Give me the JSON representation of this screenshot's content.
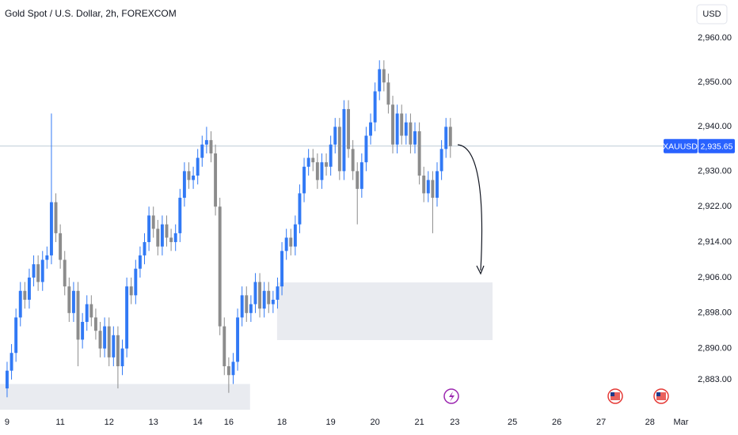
{
  "chart_data": {
    "type": "candlestick",
    "title": "Gold Spot / U.S. Dollar, 2h, FOREXCOM",
    "currency": "USD",
    "up_color": "#3179f5",
    "down_color": "#8c8c8c",
    "open": [
      2881,
      2885,
      2889,
      2897,
      2903,
      2901,
      2906,
      2909,
      2905,
      2910,
      2911,
      2923,
      2916,
      2910,
      2904,
      2898,
      2903,
      2892,
      2896,
      2900,
      2897,
      2894,
      2890,
      2895,
      2888,
      2893,
      2886,
      2890,
      2904,
      2902,
      2908,
      2911,
      2914,
      2920,
      2917,
      2913,
      2918,
      2915,
      2914,
      2916,
      2924,
      2930,
      2928,
      2929,
      2933,
      2936,
      2937,
      2934,
      2922,
      2895,
      2886,
      2884,
      2887,
      2897,
      2902,
      2898,
      2900,
      2905,
      2899,
      2903,
      2900,
      2901,
      2904,
      2912,
      2915,
      2913,
      2918,
      2925,
      2931,
      2933,
      2932,
      2928,
      2932,
      2931,
      2936,
      2940,
      2930,
      2944,
      2935,
      2930,
      2926,
      2932,
      2938,
      2941,
      2948,
      2953,
      2950,
      2945,
      2936,
      2943,
      2938,
      2941,
      2936,
      2939,
      2929,
      2925,
      2928,
      2924,
      2930,
      2935,
      2940
    ],
    "high": [
      2887,
      2891,
      2899,
      2905,
      2905,
      2908,
      2911,
      2911,
      2912,
      2913,
      2943,
      2925,
      2918,
      2912,
      2906,
      2905,
      2905,
      2898,
      2902,
      2902,
      2899,
      2896,
      2897,
      2897,
      2895,
      2895,
      2892,
      2906,
      2906,
      2910,
      2913,
      2916,
      2922,
      2922,
      2919,
      2920,
      2920,
      2917,
      2918,
      2926,
      2932,
      2932,
      2931,
      2935,
      2938,
      2940,
      2939,
      2936,
      2924,
      2897,
      2888,
      2889,
      2899,
      2904,
      2904,
      2902,
      2907,
      2907,
      2905,
      2905,
      2903,
      2906,
      2914,
      2917,
      2917,
      2920,
      2927,
      2933,
      2935,
      2935,
      2934,
      2934,
      2934,
      2938,
      2942,
      2942,
      2946,
      2946,
      2937,
      2932,
      2934,
      2940,
      2943,
      2950,
      2955,
      2955,
      2952,
      2947,
      2945,
      2945,
      2943,
      2943,
      2941,
      2941,
      2931,
      2930,
      2930,
      2932,
      2937,
      2942,
      2942
    ],
    "low": [
      2879,
      2883,
      2887,
      2895,
      2899,
      2899,
      2904,
      2903,
      2903,
      2908,
      2909,
      2914,
      2908,
      2902,
      2896,
      2896,
      2886,
      2890,
      2894,
      2895,
      2892,
      2888,
      2888,
      2886,
      2886,
      2881,
      2884,
      2888,
      2900,
      2900,
      2906,
      2909,
      2912,
      2915,
      2911,
      2911,
      2913,
      2912,
      2912,
      2914,
      2922,
      2926,
      2926,
      2927,
      2931,
      2934,
      2932,
      2920,
      2893,
      2884,
      2880,
      2882,
      2885,
      2895,
      2896,
      2896,
      2898,
      2897,
      2897,
      2898,
      2898,
      2899,
      2902,
      2910,
      2911,
      2911,
      2916,
      2923,
      2929,
      2930,
      2926,
      2926,
      2929,
      2929,
      2934,
      2928,
      2928,
      2933,
      2928,
      2918,
      2924,
      2930,
      2936,
      2939,
      2946,
      2948,
      2943,
      2934,
      2934,
      2936,
      2936,
      2934,
      2934,
      2927,
      2923,
      2923,
      2916,
      2922,
      2928,
      2933,
      2933
    ],
    "close": [
      2885,
      2889,
      2897,
      2903,
      2901,
      2906,
      2909,
      2905,
      2910,
      2911,
      2923,
      2916,
      2910,
      2904,
      2898,
      2903,
      2892,
      2896,
      2900,
      2897,
      2894,
      2890,
      2895,
      2888,
      2893,
      2886,
      2890,
      2904,
      2902,
      2908,
      2911,
      2914,
      2920,
      2917,
      2913,
      2918,
      2915,
      2914,
      2916,
      2924,
      2930,
      2928,
      2929,
      2933,
      2936,
      2937,
      2934,
      2922,
      2895,
      2886,
      2884,
      2887,
      2897,
      2902,
      2898,
      2900,
      2905,
      2899,
      2903,
      2900,
      2901,
      2904,
      2912,
      2915,
      2913,
      2918,
      2925,
      2931,
      2933,
      2932,
      2928,
      2932,
      2931,
      2936,
      2940,
      2930,
      2944,
      2935,
      2930,
      2926,
      2932,
      2938,
      2941,
      2948,
      2953,
      2950,
      2945,
      2936,
      2943,
      2938,
      2941,
      2936,
      2939,
      2929,
      2925,
      2928,
      2924,
      2930,
      2935,
      2940,
      2935.65
    ],
    "last_price": {
      "symbol": "XAUUSD",
      "value": 2935.65,
      "label": "2,935.65"
    },
    "zones": [
      {
        "x": [
          -1.6,
          54.8
        ],
        "y": [
          2876.2,
          2882
        ]
      },
      {
        "x": [
          60.9,
          109.5
        ],
        "y": [
          2891.9,
          2904.9
        ]
      }
    ],
    "xlim": [
      -1.6,
      153.8
    ],
    "ylim": [
      2876.2,
      2968.6
    ],
    "xticks": [
      {
        "value": 0,
        "label": "9"
      },
      {
        "value": 12,
        "label": "11"
      },
      {
        "value": 23,
        "label": "12"
      },
      {
        "value": 33,
        "label": "13"
      },
      {
        "value": 43,
        "label": "14"
      },
      {
        "value": 50,
        "label": "16"
      },
      {
        "value": 62,
        "label": "18"
      },
      {
        "value": 73,
        "label": "19"
      },
      {
        "value": 83,
        "label": "20"
      },
      {
        "value": 93,
        "label": "21"
      },
      {
        "value": 101,
        "label": "23"
      },
      {
        "value": 114,
        "label": "25"
      },
      {
        "value": 124,
        "label": "26"
      },
      {
        "value": 134,
        "label": "27"
      },
      {
        "value": 145,
        "label": "28"
      },
      {
        "value": 152,
        "label": "Mar"
      }
    ],
    "yticks": [
      {
        "value": 2960,
        "label": "2,960.00"
      },
      {
        "value": 2950,
        "label": "2,950.00"
      },
      {
        "value": 2940,
        "label": "2,940.00"
      },
      {
        "value": 2930,
        "label": "2,930.00"
      },
      {
        "value": 2922,
        "label": "2,922.00"
      },
      {
        "value": 2914,
        "label": "2,914.00"
      },
      {
        "value": 2906,
        "label": "2,906.00"
      },
      {
        "value": 2898,
        "label": "2,898.00"
      },
      {
        "value": 2890,
        "label": "2,890.00"
      },
      {
        "value": 2883,
        "label": "2,883.00"
      }
    ]
  }
}
